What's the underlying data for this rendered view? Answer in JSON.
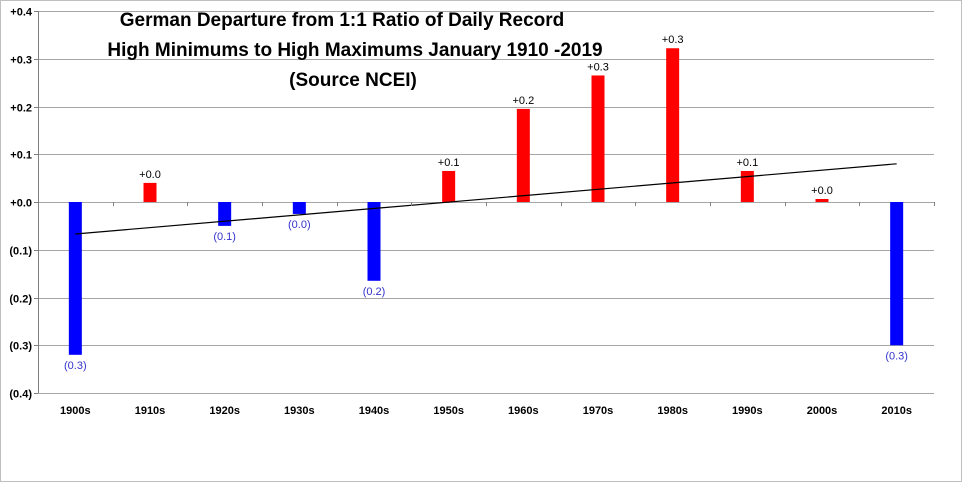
{
  "chart_data": {
    "type": "bar",
    "title_lines": [
      "German Departure from 1:1 Ratio of Daily Record",
      "High Minimums to High Maximums January 1910 -2019",
      "(Source NCEI)"
    ],
    "xlabel": "",
    "ylabel": "",
    "categories": [
      "1900s",
      "1910s",
      "1920s",
      "1930s",
      "1940s",
      "1950s",
      "1960s",
      "1970s",
      "1980s",
      "1990s",
      "2000s",
      "2010s"
    ],
    "values": [
      -0.32,
      0.04,
      -0.05,
      -0.025,
      -0.165,
      0.065,
      0.195,
      0.265,
      0.322,
      0.065,
      0.005,
      -0.3
    ],
    "data_labels": [
      "(0.3)",
      "+0.0",
      "(0.1)",
      "(0.0)",
      "(0.2)",
      "+0.1",
      "+0.2",
      "+0.3",
      "+0.3",
      "+0.1",
      "+0.0",
      "(0.3)"
    ],
    "ylim": [
      -0.4,
      0.4
    ],
    "yticks": [
      0.4,
      0.3,
      0.2,
      0.1,
      0.0,
      -0.1,
      -0.2,
      -0.3,
      -0.4
    ],
    "ytick_labels": [
      "+0.4",
      "+0.3",
      "+0.2",
      "+0.1",
      "+0.0",
      "(0.1)",
      "(0.2)",
      "(0.3)",
      "(0.4)"
    ],
    "grid": true,
    "legend": "none",
    "trendline": {
      "start": -0.067,
      "end": 0.08
    },
    "colors": {
      "positive": "#ff0000",
      "negative": "#0000ff",
      "positive_label": "#000000",
      "negative_label": "#3333cc",
      "grid": "#a6a6a6",
      "trendline": "#000000"
    }
  }
}
